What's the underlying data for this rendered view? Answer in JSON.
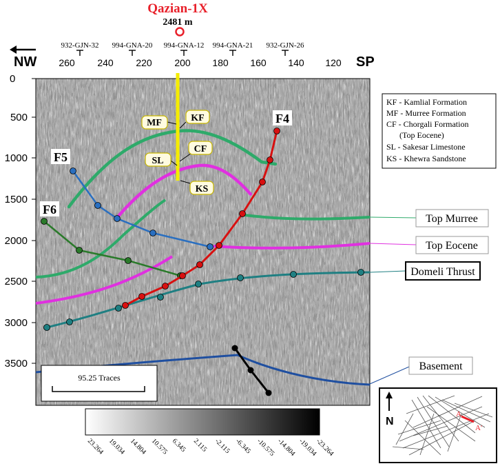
{
  "well": {
    "name": "Qazian-1X",
    "depth": "2481 m"
  },
  "direction": {
    "left": "NW",
    "right": "SP"
  },
  "crossing_lines": [
    {
      "label": "932-GJN-32"
    },
    {
      "label": "994-GNA-20"
    },
    {
      "label": "994-GNA-12"
    },
    {
      "label": "994-GNA-21"
    },
    {
      "label": "932-GJN-26"
    }
  ],
  "sp_axis": {
    "ticks": [
      "260",
      "240",
      "220",
      "200",
      "180",
      "160",
      "140",
      "120"
    ]
  },
  "time_axis": {
    "ticks": [
      "0",
      "500",
      "1000",
      "1500",
      "2000",
      "2500",
      "3000",
      "3500"
    ]
  },
  "formation_tags": {
    "mf": "MF",
    "kf": "KF",
    "cf": "CF",
    "sl": "SL",
    "ks": "KS"
  },
  "faults": {
    "f4": "F4",
    "f5": "F5",
    "f6": "F6"
  },
  "legend": {
    "items": [
      "KF - Kamlial Formation",
      "MF - Murree Formation",
      "CF - Chorgali Formation",
      "(Top Eocene)",
      "SL - Sakesar Limestone",
      "KS - Khewra Sandstone"
    ]
  },
  "horizon_labels": {
    "top_murree": "Top Murree",
    "top_eocene": "Top Eocene",
    "domeli_thrust": "Domeli Thrust",
    "basement": "Basement"
  },
  "scale_bar": {
    "label": "95.25 Traces"
  },
  "colorbar": {
    "ticks": [
      "23.264",
      "19.034",
      "14.804",
      "10.575",
      "6.345",
      "2.115",
      "-2.115",
      "-6.345",
      "-10.575",
      "-14.804",
      "-19.034",
      "-23.264"
    ]
  },
  "inset": {
    "north": "N",
    "a": "A",
    "a_prime": "A'"
  },
  "colors": {
    "well_title": "#e8202a",
    "well_bore": "#f5ec00",
    "kf_horizon": "#2eaa6a",
    "cf_horizon": "#e030e0",
    "f4_fault": "#d81010",
    "f5_fault": "#2a6fc0",
    "f6_fault": "#2a7a2a",
    "thrust": "#1f7f82",
    "basement": "#1f4fa0"
  }
}
